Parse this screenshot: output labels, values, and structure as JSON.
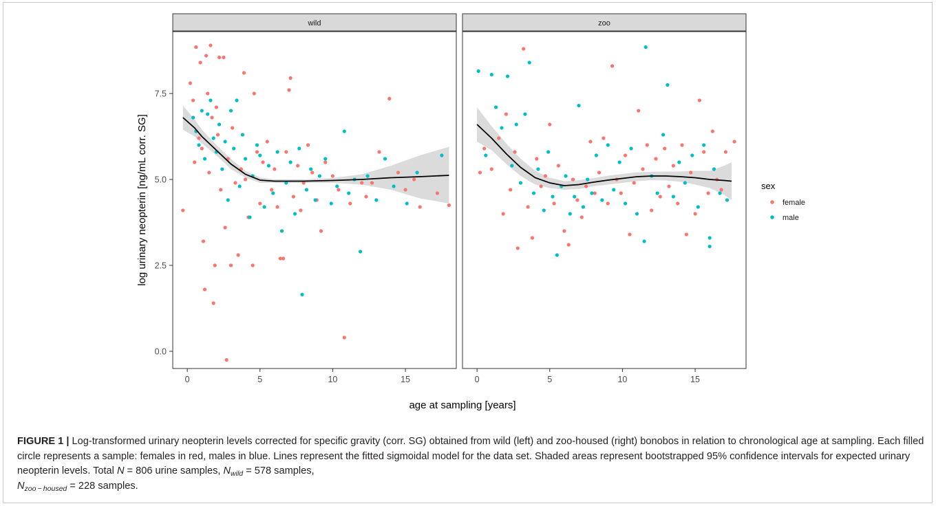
{
  "chart_data": {
    "type": "scatter",
    "facets": [
      "wild",
      "zoo"
    ],
    "xlabel": "age at sampling [years]",
    "ylabel": "log urinary neopterin [ng/mL corr. SG]",
    "xlim": [
      -1,
      18.5
    ],
    "ylim": [
      -0.5,
      9.3
    ],
    "x_ticks": [
      0,
      5,
      10,
      15
    ],
    "y_ticks": [
      0.0,
      2.5,
      5.0,
      7.5
    ],
    "y_tick_labels": [
      "0.0",
      "2.5",
      "5.0",
      "7.5"
    ],
    "legend": {
      "title": "sex",
      "position": "right",
      "entries": [
        "female",
        "male"
      ]
    },
    "colors": {
      "female": "#F8766D",
      "male": "#00BFC4",
      "ribbon": "#bdbdbd",
      "fit": "#000000",
      "strip": "#d9d9d9"
    },
    "panels": [
      {
        "facet": "wild",
        "fit": {
          "x": [
            -0.3,
            0.5,
            1,
            2,
            3,
            4,
            5,
            6,
            8,
            10,
            12,
            14,
            16,
            18
          ],
          "y": [
            6.8,
            6.5,
            6.25,
            5.85,
            5.45,
            5.15,
            4.98,
            4.95,
            4.95,
            4.97,
            5.0,
            5.05,
            5.08,
            5.12
          ],
          "lower": [
            6.45,
            6.25,
            6.05,
            5.7,
            5.3,
            5.05,
            4.9,
            4.9,
            4.9,
            4.9,
            4.85,
            4.7,
            4.45,
            4.3
          ],
          "upper": [
            7.15,
            6.75,
            6.45,
            6.0,
            5.6,
            5.25,
            5.06,
            5.0,
            5.0,
            5.04,
            5.15,
            5.4,
            5.7,
            5.95
          ]
        },
        "female": [
          [
            -0.3,
            4.1
          ],
          [
            0.2,
            7.8
          ],
          [
            0.4,
            7.3
          ],
          [
            0.5,
            5.5
          ],
          [
            0.6,
            8.85
          ],
          [
            0.8,
            6.2
          ],
          [
            0.9,
            8.4
          ],
          [
            1.0,
            5.9
          ],
          [
            1.1,
            3.2
          ],
          [
            1.2,
            1.8
          ],
          [
            1.3,
            8.6
          ],
          [
            1.4,
            7.5
          ],
          [
            1.5,
            5.2
          ],
          [
            1.6,
            8.9
          ],
          [
            1.7,
            6.8
          ],
          [
            1.8,
            1.4
          ],
          [
            1.9,
            2.5
          ],
          [
            2.0,
            7.1
          ],
          [
            2.1,
            6.3
          ],
          [
            2.2,
            8.55
          ],
          [
            2.3,
            4.7
          ],
          [
            2.5,
            8.55
          ],
          [
            2.6,
            3.6
          ],
          [
            2.7,
            -0.25
          ],
          [
            2.8,
            5.6
          ],
          [
            3.0,
            2.5
          ],
          [
            3.1,
            6.5
          ],
          [
            3.3,
            4.9
          ],
          [
            3.5,
            2.8
          ],
          [
            3.7,
            5.3
          ],
          [
            3.9,
            8.1
          ],
          [
            4.0,
            5.0
          ],
          [
            4.2,
            3.9
          ],
          [
            4.5,
            2.5
          ],
          [
            4.6,
            7.5
          ],
          [
            4.8,
            5.8
          ],
          [
            5.0,
            4.3
          ],
          [
            5.2,
            5.5
          ],
          [
            5.5,
            6.1
          ],
          [
            5.8,
            4.7
          ],
          [
            6.0,
            5.3
          ],
          [
            6.2,
            4.2
          ],
          [
            6.4,
            2.7
          ],
          [
            6.6,
            2.7
          ],
          [
            6.8,
            5.8
          ],
          [
            7.0,
            7.6
          ],
          [
            7.1,
            7.95
          ],
          [
            7.3,
            4.5
          ],
          [
            7.6,
            5.4
          ],
          [
            7.8,
            4.1
          ],
          [
            8.0,
            4.9
          ],
          [
            8.3,
            6.0
          ],
          [
            8.6,
            5.2
          ],
          [
            8.9,
            4.4
          ],
          [
            9.2,
            3.5
          ],
          [
            9.5,
            5.5
          ],
          [
            10.0,
            5.1
          ],
          [
            10.4,
            4.7
          ],
          [
            10.8,
            0.4
          ],
          [
            11.2,
            4.3
          ],
          [
            12.0,
            4.9
          ],
          [
            12.3,
            4.5
          ],
          [
            12.7,
            4.9
          ],
          [
            13.2,
            5.8
          ],
          [
            13.9,
            7.35
          ],
          [
            14.5,
            5.2
          ],
          [
            15.0,
            4.7
          ],
          [
            15.6,
            5.0
          ],
          [
            16.0,
            4.2
          ],
          [
            17.2,
            4.6
          ],
          [
            18.0,
            4.25
          ]
        ],
        "male": [
          [
            0.4,
            6.8
          ],
          [
            0.6,
            6.4
          ],
          [
            0.8,
            6.0
          ],
          [
            1.0,
            7.0
          ],
          [
            1.2,
            5.6
          ],
          [
            1.4,
            6.9
          ],
          [
            1.6,
            7.3
          ],
          [
            1.8,
            6.2
          ],
          [
            2.0,
            5.8
          ],
          [
            2.2,
            6.6
          ],
          [
            2.4,
            5.3
          ],
          [
            2.6,
            6.1
          ],
          [
            2.8,
            4.4
          ],
          [
            3.0,
            7.0
          ],
          [
            3.2,
            5.9
          ],
          [
            3.4,
            7.3
          ],
          [
            3.6,
            4.8
          ],
          [
            3.8,
            6.3
          ],
          [
            4.0,
            5.6
          ],
          [
            4.3,
            3.9
          ],
          [
            4.5,
            5.1
          ],
          [
            4.8,
            6.0
          ],
          [
            5.0,
            5.7
          ],
          [
            5.3,
            4.2
          ],
          [
            5.6,
            5.4
          ],
          [
            5.9,
            4.6
          ],
          [
            6.2,
            5.8
          ],
          [
            6.5,
            3.5
          ],
          [
            6.8,
            4.9
          ],
          [
            7.1,
            5.5
          ],
          [
            7.4,
            4.0
          ],
          [
            7.7,
            5.9
          ],
          [
            7.9,
            1.65
          ],
          [
            8.2,
            4.7
          ],
          [
            8.5,
            5.3
          ],
          [
            8.8,
            4.4
          ],
          [
            9.1,
            5.1
          ],
          [
            9.5,
            5.6
          ],
          [
            9.9,
            4.3
          ],
          [
            10.3,
            4.8
          ],
          [
            10.8,
            6.4
          ],
          [
            11.1,
            4.6
          ],
          [
            11.5,
            5.0
          ],
          [
            11.9,
            2.9
          ],
          [
            12.4,
            5.1
          ],
          [
            13.0,
            4.4
          ],
          [
            13.6,
            5.6
          ],
          [
            14.2,
            4.8
          ],
          [
            15.1,
            4.3
          ],
          [
            15.8,
            5.2
          ],
          [
            17.5,
            5.7
          ]
        ]
      },
      {
        "facet": "zoo",
        "fit": {
          "x": [
            0,
            1,
            2,
            3,
            4,
            5,
            6,
            7,
            8,
            9,
            10,
            11,
            12,
            13,
            14,
            15,
            16,
            17,
            17.5
          ],
          "y": [
            6.6,
            6.2,
            5.75,
            5.35,
            5.05,
            4.9,
            4.82,
            4.85,
            4.92,
            4.98,
            5.03,
            5.08,
            5.1,
            5.1,
            5.08,
            5.05,
            5.0,
            4.97,
            4.95
          ],
          "lower": [
            6.1,
            5.85,
            5.45,
            5.1,
            4.85,
            4.75,
            4.7,
            4.72,
            4.8,
            4.85,
            4.9,
            4.95,
            4.98,
            4.97,
            4.93,
            4.85,
            4.75,
            4.55,
            4.4
          ],
          "upper": [
            7.1,
            6.55,
            6.05,
            5.6,
            5.25,
            5.05,
            4.95,
            4.98,
            5.04,
            5.11,
            5.16,
            5.21,
            5.22,
            5.23,
            5.23,
            5.25,
            5.25,
            5.4,
            5.5
          ]
        },
        "female": [
          [
            0.2,
            5.2
          ],
          [
            0.5,
            5.9
          ],
          [
            1.0,
            5.3
          ],
          [
            1.5,
            6.2
          ],
          [
            1.8,
            4.0
          ],
          [
            2.0,
            6.9
          ],
          [
            2.3,
            4.7
          ],
          [
            2.6,
            5.8
          ],
          [
            2.8,
            3.0
          ],
          [
            3.2,
            8.8
          ],
          [
            3.5,
            4.2
          ],
          [
            3.8,
            3.3
          ],
          [
            4.1,
            5.6
          ],
          [
            4.4,
            4.8
          ],
          [
            4.7,
            5.1
          ],
          [
            5.0,
            6.6
          ],
          [
            5.3,
            4.3
          ],
          [
            5.6,
            5.4
          ],
          [
            6.0,
            3.5
          ],
          [
            6.3,
            3.1
          ],
          [
            6.6,
            5.0
          ],
          [
            6.9,
            4.4
          ],
          [
            7.2,
            3.9
          ],
          [
            7.5,
            4.8
          ],
          [
            7.8,
            6.1
          ],
          [
            8.1,
            4.6
          ],
          [
            8.4,
            5.2
          ],
          [
            8.7,
            6.2
          ],
          [
            9.0,
            4.3
          ],
          [
            9.3,
            8.3
          ],
          [
            9.6,
            5.0
          ],
          [
            9.9,
            4.6
          ],
          [
            10.2,
            5.7
          ],
          [
            10.5,
            3.4
          ],
          [
            10.8,
            4.9
          ],
          [
            11.1,
            7.0
          ],
          [
            11.4,
            5.3
          ],
          [
            11.7,
            6.0
          ],
          [
            12.0,
            4.1
          ],
          [
            12.3,
            5.6
          ],
          [
            12.6,
            4.5
          ],
          [
            12.9,
            5.9
          ],
          [
            13.2,
            4.8
          ],
          [
            13.5,
            5.4
          ],
          [
            13.8,
            4.3
          ],
          [
            14.1,
            6.0
          ],
          [
            14.4,
            3.4
          ],
          [
            14.7,
            5.2
          ],
          [
            15.0,
            4.0
          ],
          [
            15.3,
            7.3
          ],
          [
            15.6,
            5.8
          ],
          [
            15.9,
            4.6
          ],
          [
            16.2,
            6.4
          ],
          [
            16.5,
            5.0
          ],
          [
            16.8,
            4.7
          ],
          [
            17.1,
            5.8
          ],
          [
            17.7,
            6.1
          ]
        ],
        "male": [
          [
            0.1,
            8.15
          ],
          [
            0.6,
            5.7
          ],
          [
            1.0,
            8.05
          ],
          [
            1.3,
            7.1
          ],
          [
            1.7,
            6.5
          ],
          [
            2.1,
            8.0
          ],
          [
            2.4,
            5.4
          ],
          [
            2.7,
            6.6
          ],
          [
            3.0,
            4.9
          ],
          [
            3.3,
            6.9
          ],
          [
            3.6,
            8.4
          ],
          [
            3.9,
            4.6
          ],
          [
            4.2,
            5.3
          ],
          [
            4.6,
            4.1
          ],
          [
            4.9,
            5.8
          ],
          [
            5.2,
            4.5
          ],
          [
            5.5,
            2.8
          ],
          [
            5.8,
            4.8
          ],
          [
            6.1,
            5.1
          ],
          [
            6.4,
            4.0
          ],
          [
            6.7,
            4.5
          ],
          [
            7.0,
            7.15
          ],
          [
            7.3,
            4.2
          ],
          [
            7.6,
            5.0
          ],
          [
            7.9,
            4.6
          ],
          [
            8.2,
            5.7
          ],
          [
            8.6,
            4.4
          ],
          [
            9.0,
            6.0
          ],
          [
            9.4,
            4.7
          ],
          [
            9.8,
            5.5
          ],
          [
            10.2,
            4.3
          ],
          [
            10.6,
            5.9
          ],
          [
            11.0,
            4.0
          ],
          [
            11.5,
            3.2
          ],
          [
            11.6,
            8.85
          ],
          [
            12.0,
            5.1
          ],
          [
            12.4,
            4.6
          ],
          [
            12.8,
            6.3
          ],
          [
            13.1,
            7.75
          ],
          [
            13.5,
            4.5
          ],
          [
            13.9,
            5.5
          ],
          [
            14.3,
            4.9
          ],
          [
            14.8,
            5.7
          ],
          [
            15.2,
            4.2
          ],
          [
            15.6,
            6.0
          ],
          [
            16.0,
            3.3
          ],
          [
            16.0,
            3.05
          ],
          [
            16.3,
            5.3
          ],
          [
            16.7,
            4.6
          ],
          [
            17.2,
            4.4
          ]
        ]
      }
    ]
  },
  "caption": {
    "figure_label": "FIGURE 1 |",
    "text_a": " Log-transformed urinary neopterin levels corrected for specific gravity (corr. SG) obtained from wild (left) and zoo-housed (right) bonobos in relation to chronological age at sampling. Each filled circle represents a sample: females in red, males in blue. Lines represent the fitted sigmoidal model for the data set. Shaded areas represent bootstrapped 95% confidence intervals for expected urinary neopterin levels. Total ",
    "n_symbol": "N",
    "text_b": " = 806 urine samples, ",
    "n_wild_sub": "wild",
    "text_c": " = 578 samples,",
    "n_zoo_sub": "zoo − housed",
    "text_d": " = 228 samples."
  }
}
